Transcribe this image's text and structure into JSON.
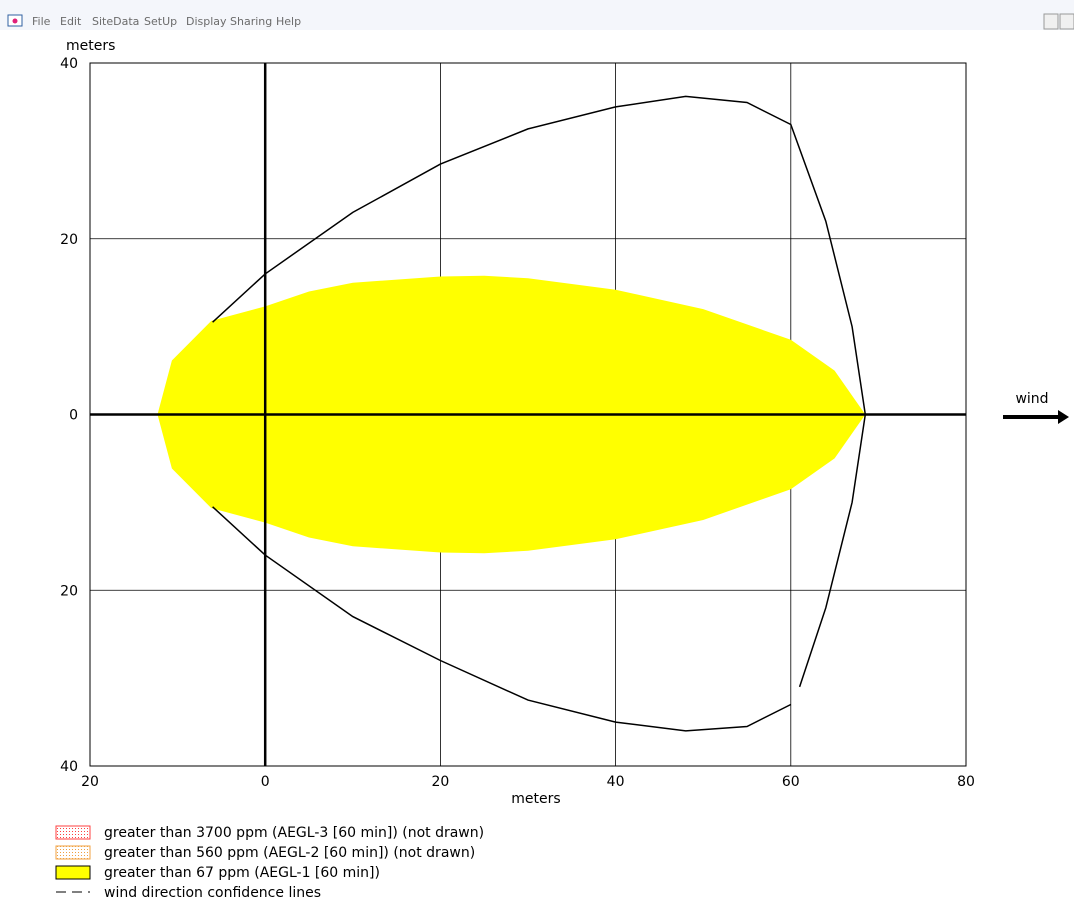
{
  "menu": [
    "File",
    "Edit",
    "SiteData",
    "SetUp",
    "Display",
    "Sharing",
    "Help"
  ],
  "chart_data": {
    "type": "threat_zone",
    "x_label": "meters",
    "y_label": "meters",
    "wind_label": "wind",
    "xlim": [
      -20,
      80
    ],
    "ylim": [
      -40,
      40
    ],
    "xticks": [
      {
        "value": -20,
        "label": "20"
      },
      0,
      20,
      40,
      60,
      80
    ],
    "yticks": [
      {
        "value": -40,
        "label": "40"
      },
      {
        "value": -20,
        "label": "20"
      },
      0,
      20,
      40
    ],
    "grid": true,
    "series": [
      {
        "name": "greater than 3700 ppm (AEGL-3 [60 min]) (not drawn)",
        "color": "#ff4040",
        "x": [],
        "values": []
      },
      {
        "name": "greater than 560 ppm (AEGL-2 [60 min]) (not drawn)",
        "color": "#f0a040",
        "x": [],
        "values": []
      },
      {
        "name": "greater than 67 ppm (AEGL-1 [60 min])",
        "color": "#ffff00",
        "x": [
          0,
          -6.15,
          -10.65,
          -12.3,
          -10.65,
          -6.15,
          0,
          5,
          10,
          20,
          25,
          30,
          40,
          50,
          60,
          65,
          68.5,
          65,
          60,
          50,
          40,
          30,
          25,
          20,
          10,
          5,
          0
        ],
        "values": [
          12.3,
          10.65,
          6.15,
          0,
          -6.15,
          -10.65,
          -12.3,
          -14,
          -15,
          -15.7,
          -15.8,
          -15.5,
          -14.2,
          -12,
          -8.5,
          -5,
          0,
          5,
          8.5,
          12,
          14.2,
          15.5,
          15.8,
          15.7,
          15,
          14,
          12.3
        ]
      },
      {
        "name": "wind direction confidence lines",
        "color": "#000000",
        "x": [
          -6,
          0,
          10,
          20,
          30,
          40,
          48,
          55,
          60,
          64,
          67,
          68.5,
          67,
          64,
          61,
          null,
          60,
          55,
          48,
          40,
          30,
          20,
          10,
          0,
          -6
        ],
        "values": [
          10.5,
          16,
          23,
          28.5,
          32.5,
          35,
          36.2,
          35.5,
          33,
          22,
          10,
          0,
          -10,
          -22,
          -31,
          null,
          -33,
          -35.5,
          -36,
          -35,
          -32.5,
          -28,
          -23,
          -16,
          -10.5
        ]
      }
    ]
  }
}
